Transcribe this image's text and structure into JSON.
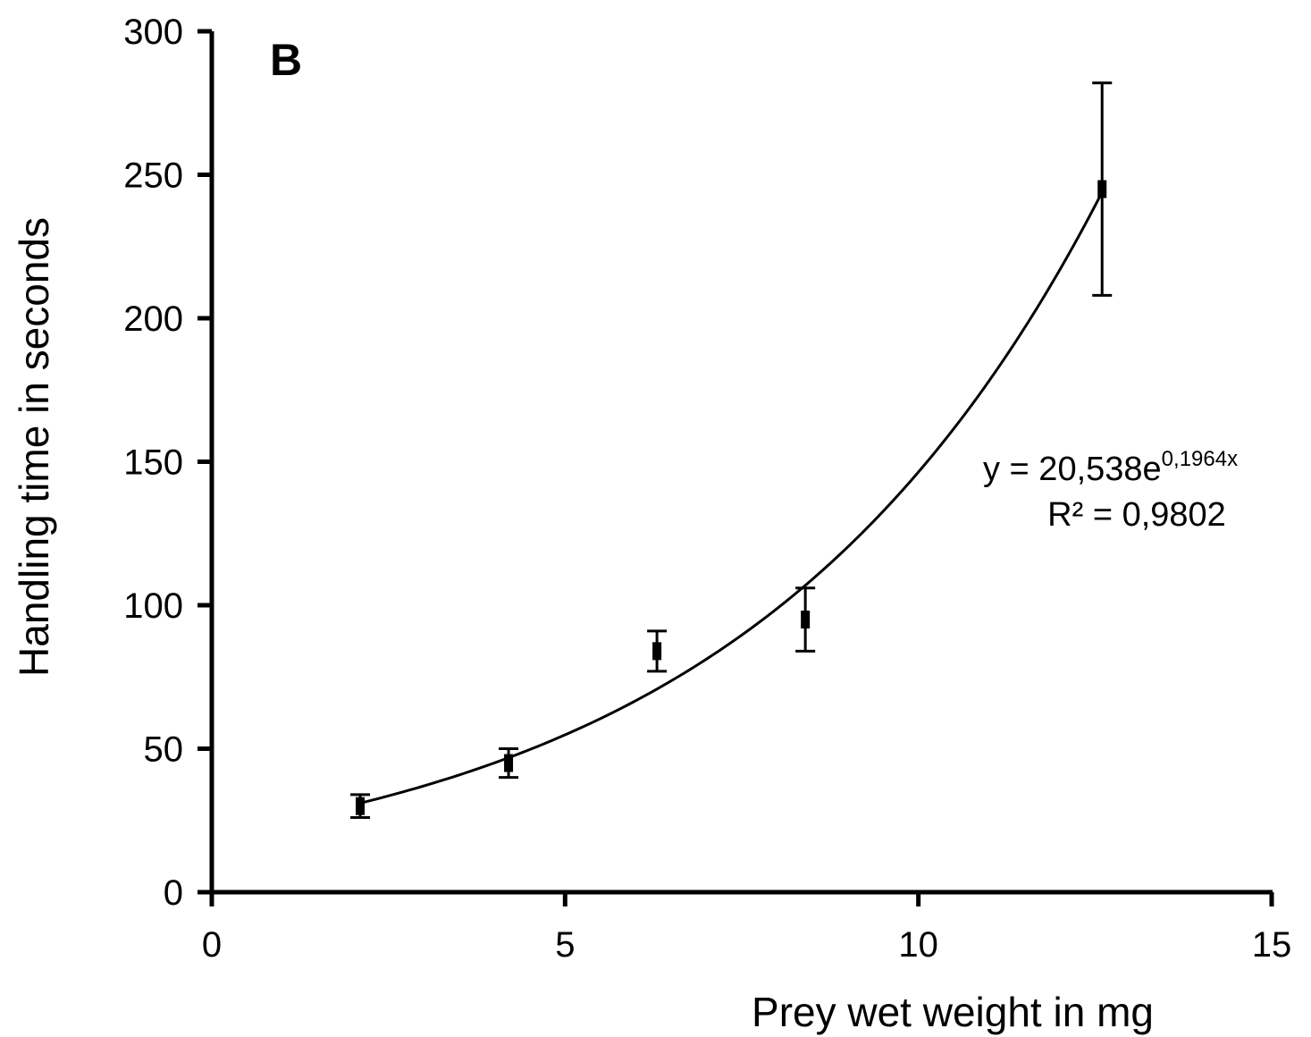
{
  "chart_data": {
    "type": "scatter",
    "panel_label": "B",
    "xlabel": "Prey wet weight in mg",
    "ylabel": "Handling time in seconds",
    "xlim": [
      0,
      15
    ],
    "ylim": [
      0,
      300
    ],
    "x_ticks": [
      0,
      5,
      10,
      15
    ],
    "y_ticks": [
      0,
      50,
      100,
      150,
      200,
      250,
      300
    ],
    "x_tick_labels": [
      "0",
      "5",
      "10",
      "15"
    ],
    "y_tick_labels": [
      "0",
      "50",
      "100",
      "150",
      "200",
      "250",
      "300"
    ],
    "grid": false,
    "legend": "none",
    "series": [
      {
        "x": [
          2.1,
          4.2,
          6.3,
          8.4,
          12.6
        ],
        "y": [
          30,
          45,
          84,
          95,
          245
        ],
        "error_low": [
          26,
          40,
          77,
          84,
          208
        ],
        "error_high": [
          34,
          50,
          91,
          106,
          282
        ]
      }
    ],
    "trendline": {
      "type": "exponential",
      "a": 20.538,
      "b": 0.1964,
      "x_range": [
        2.1,
        12.6
      ]
    },
    "equation": {
      "base": "y = 20,538e",
      "exponent": "0,1964x",
      "r2": "R² = 0,9802"
    },
    "color": "#000000"
  }
}
